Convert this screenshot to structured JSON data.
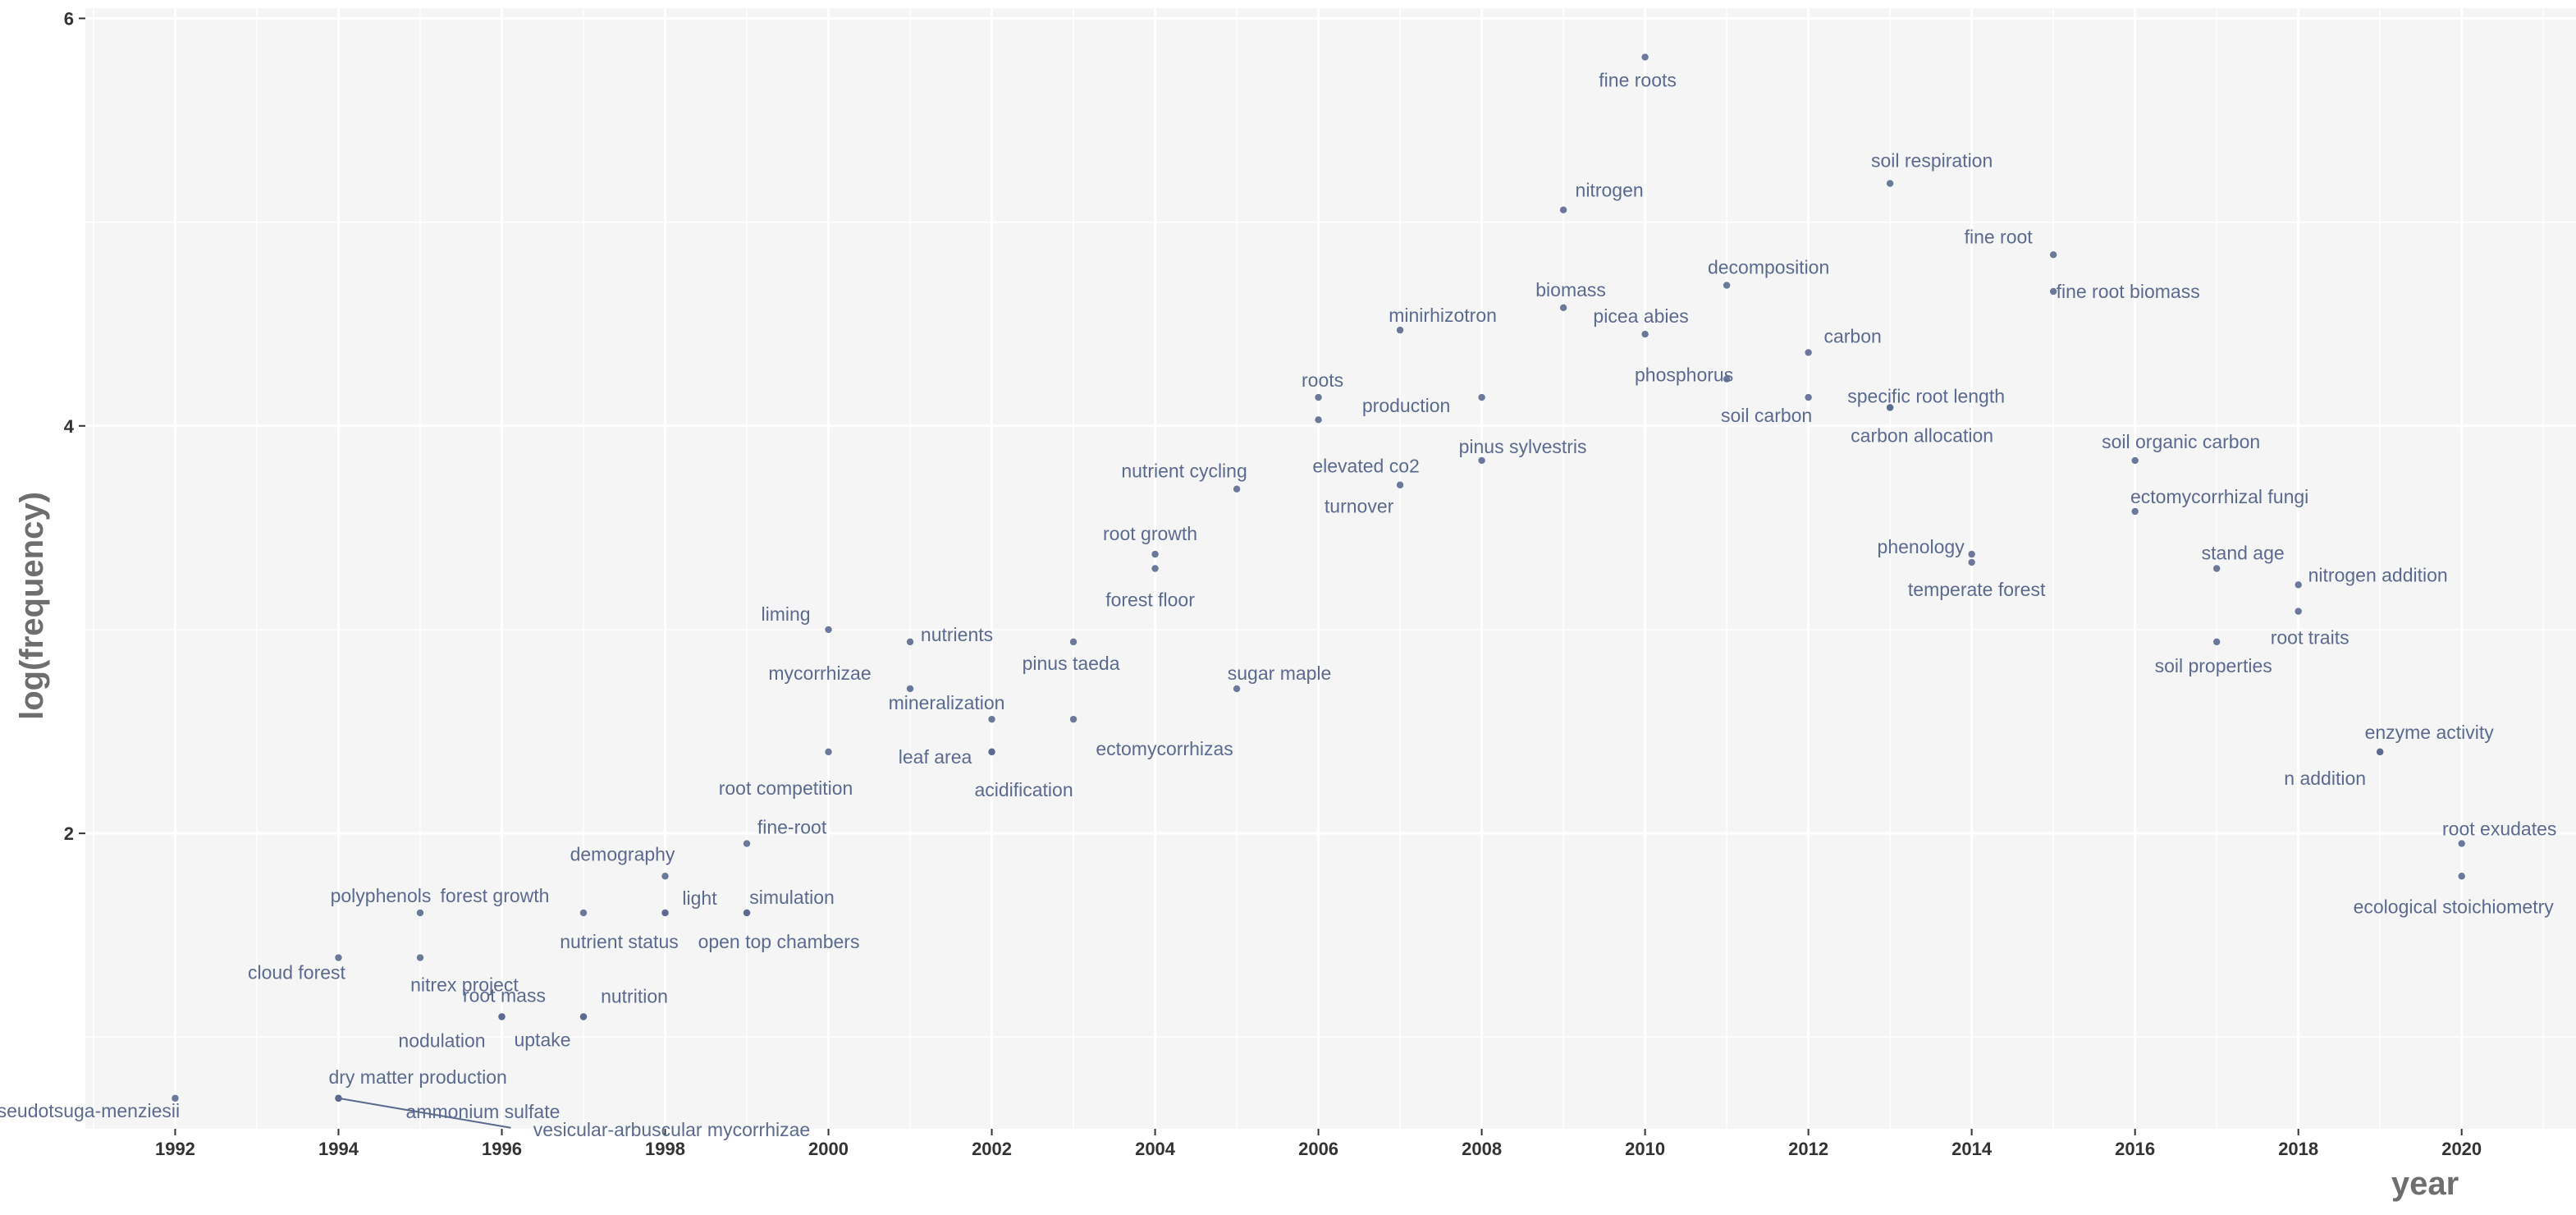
{
  "chart_data": {
    "type": "scatter",
    "title": "",
    "xlabel": "year",
    "ylabel": "log(frequency)",
    "xlim": [
      1990.9,
      2021.4
    ],
    "ylim": [
      0.55,
      6.05
    ],
    "x_ticks": [
      1992,
      1994,
      1996,
      1998,
      2000,
      2002,
      2004,
      2006,
      2008,
      2010,
      2012,
      2014,
      2016,
      2018,
      2020
    ],
    "y_ticks": [
      2,
      4,
      6
    ],
    "grid": true,
    "colors": {
      "point": "#5b6a8f",
      "label": "#5b6a8f",
      "panel": "#f5f5f5",
      "grid": "#ffffff"
    },
    "points": [
      {
        "label": "pseudotsuga-menziesii",
        "x": 1992,
        "y": 0.7
      },
      {
        "label": "dry matter production",
        "x": 1994,
        "y": 0.7
      },
      {
        "label": "ammonium sulfate",
        "x": 1994,
        "y": 0.7
      },
      {
        "label": "vesicular-arbuscular mycorrhizae",
        "x": 1994,
        "y": 0.7
      },
      {
        "label": "cloud forest",
        "x": 1994,
        "y": 1.39
      },
      {
        "label": "polyphenols",
        "x": 1995,
        "y": 1.61
      },
      {
        "label": "nitrex project",
        "x": 1995,
        "y": 1.39
      },
      {
        "label": "nodulation",
        "x": 1996,
        "y": 1.1
      },
      {
        "label": "root mass",
        "x": 1996,
        "y": 1.1
      },
      {
        "label": "uptake",
        "x": 1997,
        "y": 1.1
      },
      {
        "label": "nutrition",
        "x": 1997,
        "y": 1.1
      },
      {
        "label": "forest growth",
        "x": 1997,
        "y": 1.61
      },
      {
        "label": "nutrient status",
        "x": 1998,
        "y": 1.61
      },
      {
        "label": "light",
        "x": 1998,
        "y": 1.61
      },
      {
        "label": "demography",
        "x": 1998,
        "y": 1.79
      },
      {
        "label": "simulation",
        "x": 1999,
        "y": 1.61
      },
      {
        "label": "open top chambers",
        "x": 1999,
        "y": 1.61
      },
      {
        "label": "fine-root",
        "x": 1999,
        "y": 1.95
      },
      {
        "label": "liming",
        "x": 2000,
        "y": 3.0
      },
      {
        "label": "root competition",
        "x": 2000,
        "y": 2.4
      },
      {
        "label": "nutrients",
        "x": 2001,
        "y": 2.94
      },
      {
        "label": "mycorrhizae",
        "x": 2001,
        "y": 2.71
      },
      {
        "label": "mineralization",
        "x": 2002,
        "y": 2.56
      },
      {
        "label": "leaf area",
        "x": 2002,
        "y": 2.4
      },
      {
        "label": "acidification",
        "x": 2002,
        "y": 2.4
      },
      {
        "label": "pinus taeda",
        "x": 2003,
        "y": 2.94
      },
      {
        "label": "ectomycorrhizas",
        "x": 2003,
        "y": 2.56
      },
      {
        "label": "nutrient cycling",
        "x": 2005,
        "y": 3.69
      },
      {
        "label": "root growth",
        "x": 2004,
        "y": 3.37
      },
      {
        "label": "forest floor",
        "x": 2004,
        "y": 3.3
      },
      {
        "label": "sugar maple",
        "x": 2005,
        "y": 2.71
      },
      {
        "label": "roots",
        "x": 2006,
        "y": 4.14
      },
      {
        "label": "elevated co2",
        "x": 2006,
        "y": 4.03
      },
      {
        "label": "minirhizotron",
        "x": 2007,
        "y": 4.47
      },
      {
        "label": "turnover",
        "x": 2007,
        "y": 3.71
      },
      {
        "label": "production",
        "x": 2008,
        "y": 4.14
      },
      {
        "label": "pinus sylvestris",
        "x": 2008,
        "y": 3.83
      },
      {
        "label": "nitrogen",
        "x": 2009,
        "y": 5.06
      },
      {
        "label": "biomass",
        "x": 2009,
        "y": 4.58
      },
      {
        "label": "fine roots",
        "x": 2010,
        "y": 5.81
      },
      {
        "label": "picea abies",
        "x": 2010,
        "y": 4.45
      },
      {
        "label": "decomposition",
        "x": 2011,
        "y": 4.69
      },
      {
        "label": "phosphorus",
        "x": 2011,
        "y": 4.23
      },
      {
        "label": "carbon",
        "x": 2012,
        "y": 4.36
      },
      {
        "label": "soil carbon",
        "x": 2012,
        "y": 4.14
      },
      {
        "label": "soil respiration",
        "x": 2013,
        "y": 5.19
      },
      {
        "label": "specific root length",
        "x": 2013,
        "y": 4.09
      },
      {
        "label": "carbon allocation",
        "x": 2013,
        "y": 4.09
      },
      {
        "label": "phenology",
        "x": 2014,
        "y": 3.37
      },
      {
        "label": "temperate forest",
        "x": 2014,
        "y": 3.33
      },
      {
        "label": "fine root",
        "x": 2015,
        "y": 4.84
      },
      {
        "label": "fine root biomass",
        "x": 2015,
        "y": 4.66
      },
      {
        "label": "soil organic carbon",
        "x": 2016,
        "y": 3.83
      },
      {
        "label": "ectomycorrhizal fungi",
        "x": 2016,
        "y": 3.58
      },
      {
        "label": "stand age",
        "x": 2017,
        "y": 3.3
      },
      {
        "label": "soil properties",
        "x": 2017,
        "y": 2.94
      },
      {
        "label": "nitrogen addition",
        "x": 2018,
        "y": 3.22
      },
      {
        "label": "root traits",
        "x": 2018,
        "y": 3.09
      },
      {
        "label": "enzyme activity",
        "x": 2019,
        "y": 2.4
      },
      {
        "label": "n addition",
        "x": 2019,
        "y": 2.4
      },
      {
        "label": "root exudates",
        "x": 2020,
        "y": 1.95
      },
      {
        "label": "ecological stoichiometry",
        "x": 2020,
        "y": 1.79
      }
    ]
  }
}
